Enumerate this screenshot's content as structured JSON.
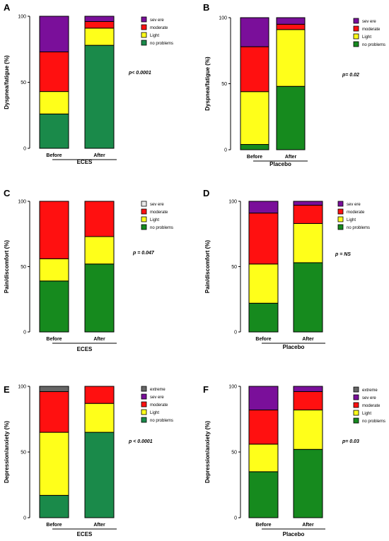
{
  "chart_data": [
    {
      "type": "bar",
      "panel": "A",
      "ylabel": "Dyspnea/fatigue (%)",
      "group_label": "ECES",
      "p_value": "p< 0.0001",
      "categories": [
        "Before",
        "After"
      ],
      "yticks": [
        "0",
        "50",
        "100"
      ],
      "ylim": [
        0,
        100
      ],
      "legend": [
        {
          "name": "sev ere",
          "color": "#7a0f9a"
        },
        {
          "name": "moderate",
          "color": "#ff1010"
        },
        {
          "name": "Light",
          "color": "#ffff1a"
        },
        {
          "name": "no problems",
          "color": "#1a8a4a"
        }
      ],
      "series": [
        {
          "name": "no problems",
          "values": [
            26,
            78
          ]
        },
        {
          "name": "Light",
          "values": [
            17,
            13
          ]
        },
        {
          "name": "moderate",
          "values": [
            30,
            5
          ]
        },
        {
          "name": "sev ere",
          "values": [
            27,
            4
          ]
        }
      ]
    },
    {
      "type": "bar",
      "panel": "B",
      "ylabel": "Dyspnea/fatigue (%)",
      "group_label": "Placebo",
      "p_value": "p= 0.02",
      "categories": [
        "Before",
        "After"
      ],
      "yticks": [
        "0",
        "50",
        "100"
      ],
      "ylim": [
        0,
        100
      ],
      "legend": [
        {
          "name": "sev ere",
          "color": "#7a0f9a"
        },
        {
          "name": "moderate",
          "color": "#ff1010"
        },
        {
          "name": "Light",
          "color": "#ffff1a"
        },
        {
          "name": "no problems",
          "color": "#168a1e"
        }
      ],
      "series": [
        {
          "name": "no problems",
          "values": [
            4,
            48
          ]
        },
        {
          "name": "Light",
          "values": [
            40,
            43
          ]
        },
        {
          "name": "moderate",
          "values": [
            34,
            4
          ]
        },
        {
          "name": "sev ere",
          "values": [
            22,
            5
          ]
        }
      ]
    },
    {
      "type": "bar",
      "panel": "C",
      "ylabel": "Pain/discomfort (%)",
      "group_label": "ECES",
      "p_value": "p = 0.047",
      "categories": [
        "Before",
        "After"
      ],
      "yticks": [
        "0",
        "50",
        "100"
      ],
      "ylim": [
        0,
        100
      ],
      "legend": [
        {
          "name": "sev ere",
          "color": "#e8e8e8"
        },
        {
          "name": "moderate",
          "color": "#ff1010"
        },
        {
          "name": "Light",
          "color": "#ffff1a"
        },
        {
          "name": "no problems",
          "color": "#168a1e"
        }
      ],
      "series": [
        {
          "name": "no problems",
          "values": [
            39,
            52
          ]
        },
        {
          "name": "Light",
          "values": [
            17,
            21
          ]
        },
        {
          "name": "moderate",
          "values": [
            44,
            27
          ]
        },
        {
          "name": "sev ere",
          "values": [
            0,
            0
          ]
        }
      ]
    },
    {
      "type": "bar",
      "panel": "D",
      "ylabel": "Pain/discomfort (%)",
      "group_label": "Placebo",
      "p_value": "p = NS",
      "categories": [
        "Before",
        "After"
      ],
      "yticks": [
        "0",
        "50",
        "100"
      ],
      "ylim": [
        0,
        100
      ],
      "legend": [
        {
          "name": "sev ere",
          "color": "#7a0f9a"
        },
        {
          "name": "moderate",
          "color": "#ff1010"
        },
        {
          "name": "Light",
          "color": "#ffff1a"
        },
        {
          "name": "no problems",
          "color": "#168a1e"
        }
      ],
      "series": [
        {
          "name": "no problems",
          "values": [
            22,
            53
          ]
        },
        {
          "name": "Light",
          "values": [
            30,
            30
          ]
        },
        {
          "name": "moderate",
          "values": [
            39,
            14
          ]
        },
        {
          "name": "sev ere",
          "values": [
            9,
            3
          ]
        }
      ]
    },
    {
      "type": "bar",
      "panel": "E",
      "ylabel": "Depression/anxiety (%)",
      "group_label": "ECES",
      "p_value": "p < 0.0001",
      "categories": [
        "Before",
        "After"
      ],
      "yticks": [
        "0",
        "50",
        "100"
      ],
      "ylim": [
        0,
        100
      ],
      "legend": [
        {
          "name": "extreme",
          "color": "#666666"
        },
        {
          "name": "sev ere",
          "color": "#7a0f9a"
        },
        {
          "name": "moderate",
          "color": "#ff1010"
        },
        {
          "name": "Light",
          "color": "#ffff1a"
        },
        {
          "name": "no problems",
          "color": "#1a8a4a"
        }
      ],
      "series": [
        {
          "name": "no problems",
          "values": [
            17,
            65
          ]
        },
        {
          "name": "Light",
          "values": [
            48,
            22
          ]
        },
        {
          "name": "moderate",
          "values": [
            31,
            13
          ]
        },
        {
          "name": "sev ere",
          "values": [
            0,
            0
          ]
        },
        {
          "name": "extreme",
          "values": [
            4,
            0
          ]
        }
      ]
    },
    {
      "type": "bar",
      "panel": "F",
      "ylabel": "Depression/anxiety (%)",
      "group_label": "Placebo",
      "p_value": "p= 0.03",
      "categories": [
        "Before",
        "After"
      ],
      "yticks": [
        "0",
        "50",
        "100"
      ],
      "ylim": [
        0,
        100
      ],
      "legend": [
        {
          "name": "extreme",
          "color": "#666666"
        },
        {
          "name": "sev ere",
          "color": "#7a0f9a"
        },
        {
          "name": "moderate",
          "color": "#ff1010"
        },
        {
          "name": "Light",
          "color": "#ffff1a"
        },
        {
          "name": "no problems",
          "color": "#168a1e"
        }
      ],
      "series": [
        {
          "name": "no problems",
          "values": [
            35,
            52
          ]
        },
        {
          "name": "Light",
          "values": [
            21,
            30
          ]
        },
        {
          "name": "moderate",
          "values": [
            26,
            14
          ]
        },
        {
          "name": "sev ere",
          "values": [
            18,
            4
          ]
        },
        {
          "name": "extreme",
          "values": [
            0,
            0
          ]
        }
      ]
    }
  ]
}
